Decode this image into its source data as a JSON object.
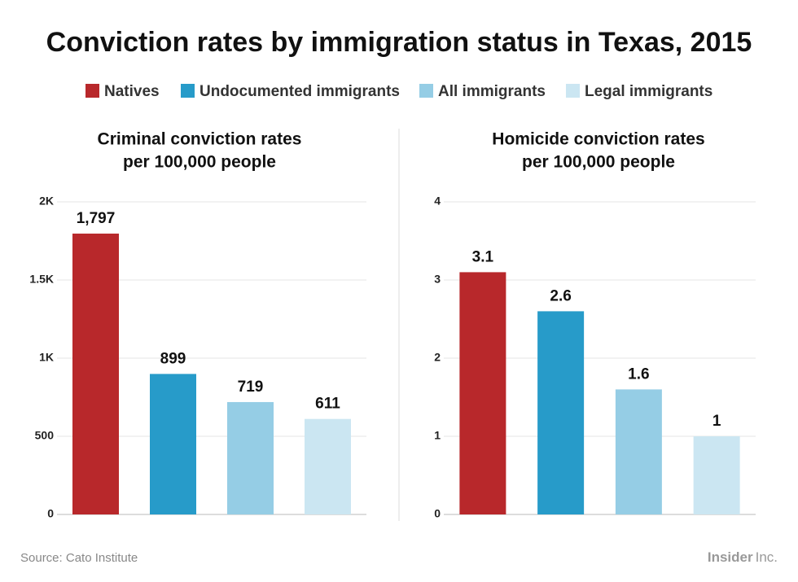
{
  "title": "Conviction rates by immigration status in Texas, 2015",
  "source": "Source: Cato Institute",
  "brand": {
    "name": "Insider",
    "suffix": "Inc."
  },
  "chart_data": [
    {
      "type": "bar",
      "title": "Criminal conviction rates",
      "subtitle": "per 100,000 people",
      "series": [
        {
          "name": "Natives",
          "color": "#b8282b",
          "values": [
            1797
          ],
          "value_labels": [
            "1,797"
          ]
        },
        {
          "name": "Undocumented immigrants",
          "color": "#279bc9",
          "values": [
            899
          ]
        },
        {
          "name": "All immigrants",
          "color": "#95cde5",
          "values": [
            719
          ]
        },
        {
          "name": "Legal immigrants",
          "color": "#cbe6f2",
          "values": [
            611
          ]
        }
      ],
      "ylim": [
        0,
        2000
      ],
      "yticks": [
        0,
        500,
        {
          "value": 1000,
          "label": "1K"
        },
        {
          "value": 1500,
          "label": "1.5K"
        },
        {
          "value": 2000,
          "label": "2K"
        }
      ],
      "grid": true
    },
    {
      "type": "bar",
      "title": "Homicide conviction rates",
      "subtitle": "per 100,000 people",
      "series": [
        {
          "name": "Natives",
          "color": "#b8282b",
          "values": [
            3.1
          ]
        },
        {
          "name": "Undocumented immigrants",
          "color": "#279bc9",
          "values": [
            2.6
          ]
        },
        {
          "name": "All immigrants",
          "color": "#95cde5",
          "values": [
            1.6
          ]
        },
        {
          "name": "Legal immigrants",
          "color": "#cbe6f2",
          "values": [
            1
          ]
        }
      ],
      "ylim": [
        0,
        4
      ],
      "yticks": [
        0,
        1,
        2,
        3,
        4
      ],
      "grid": true
    }
  ]
}
